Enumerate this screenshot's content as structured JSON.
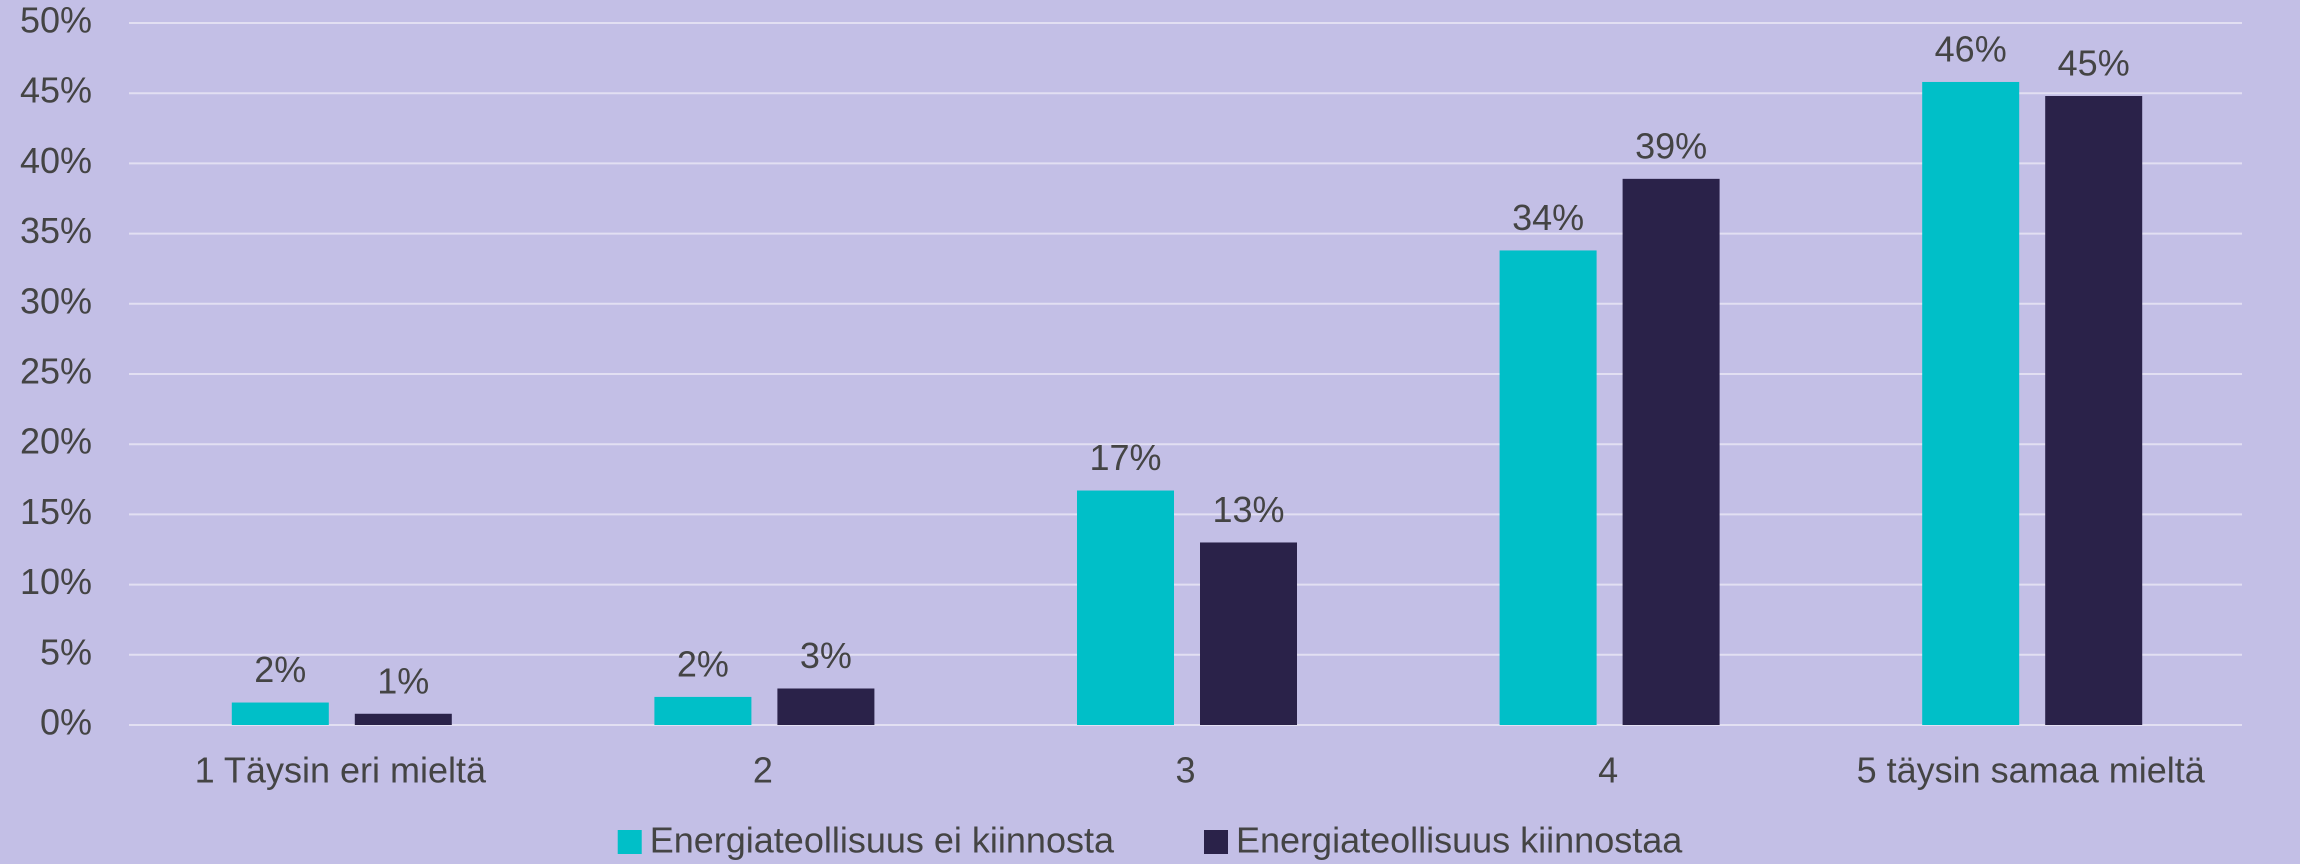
{
  "chart_data": {
    "type": "bar",
    "categories": [
      "1 Täysin eri mieltä",
      "2",
      "3",
      "4",
      "5 täysin samaa mieltä"
    ],
    "series": [
      {
        "name": "Energiateollisuus ei kiinnosta",
        "color": "#00bfc8",
        "values": [
          1.6,
          2.0,
          16.7,
          33.8,
          45.8
        ],
        "value_labels": [
          "2%",
          "2%",
          "17%",
          "34%",
          "46%"
        ]
      },
      {
        "name": "Energiateollisuus kiinnostaa",
        "color": "#2a2249",
        "values": [
          0.8,
          2.6,
          13.0,
          38.9,
          44.8
        ],
        "value_labels": [
          "1%",
          "3%",
          "13%",
          "39%",
          "45%"
        ]
      }
    ],
    "ylim": [
      0,
      50
    ],
    "yticks": [
      {
        "value": 0,
        "label": "0%"
      },
      {
        "value": 5,
        "label": "5%"
      },
      {
        "value": 10,
        "label": "10%"
      },
      {
        "value": 15,
        "label": "15%"
      },
      {
        "value": 20,
        "label": "20%"
      },
      {
        "value": 25,
        "label": "25%"
      },
      {
        "value": 30,
        "label": "30%"
      },
      {
        "value": 35,
        "label": "35%"
      },
      {
        "value": 40,
        "label": "40%"
      },
      {
        "value": 45,
        "label": "45%"
      },
      {
        "value": 50,
        "label": "50%"
      }
    ],
    "grid": true,
    "legend": "bottom"
  }
}
